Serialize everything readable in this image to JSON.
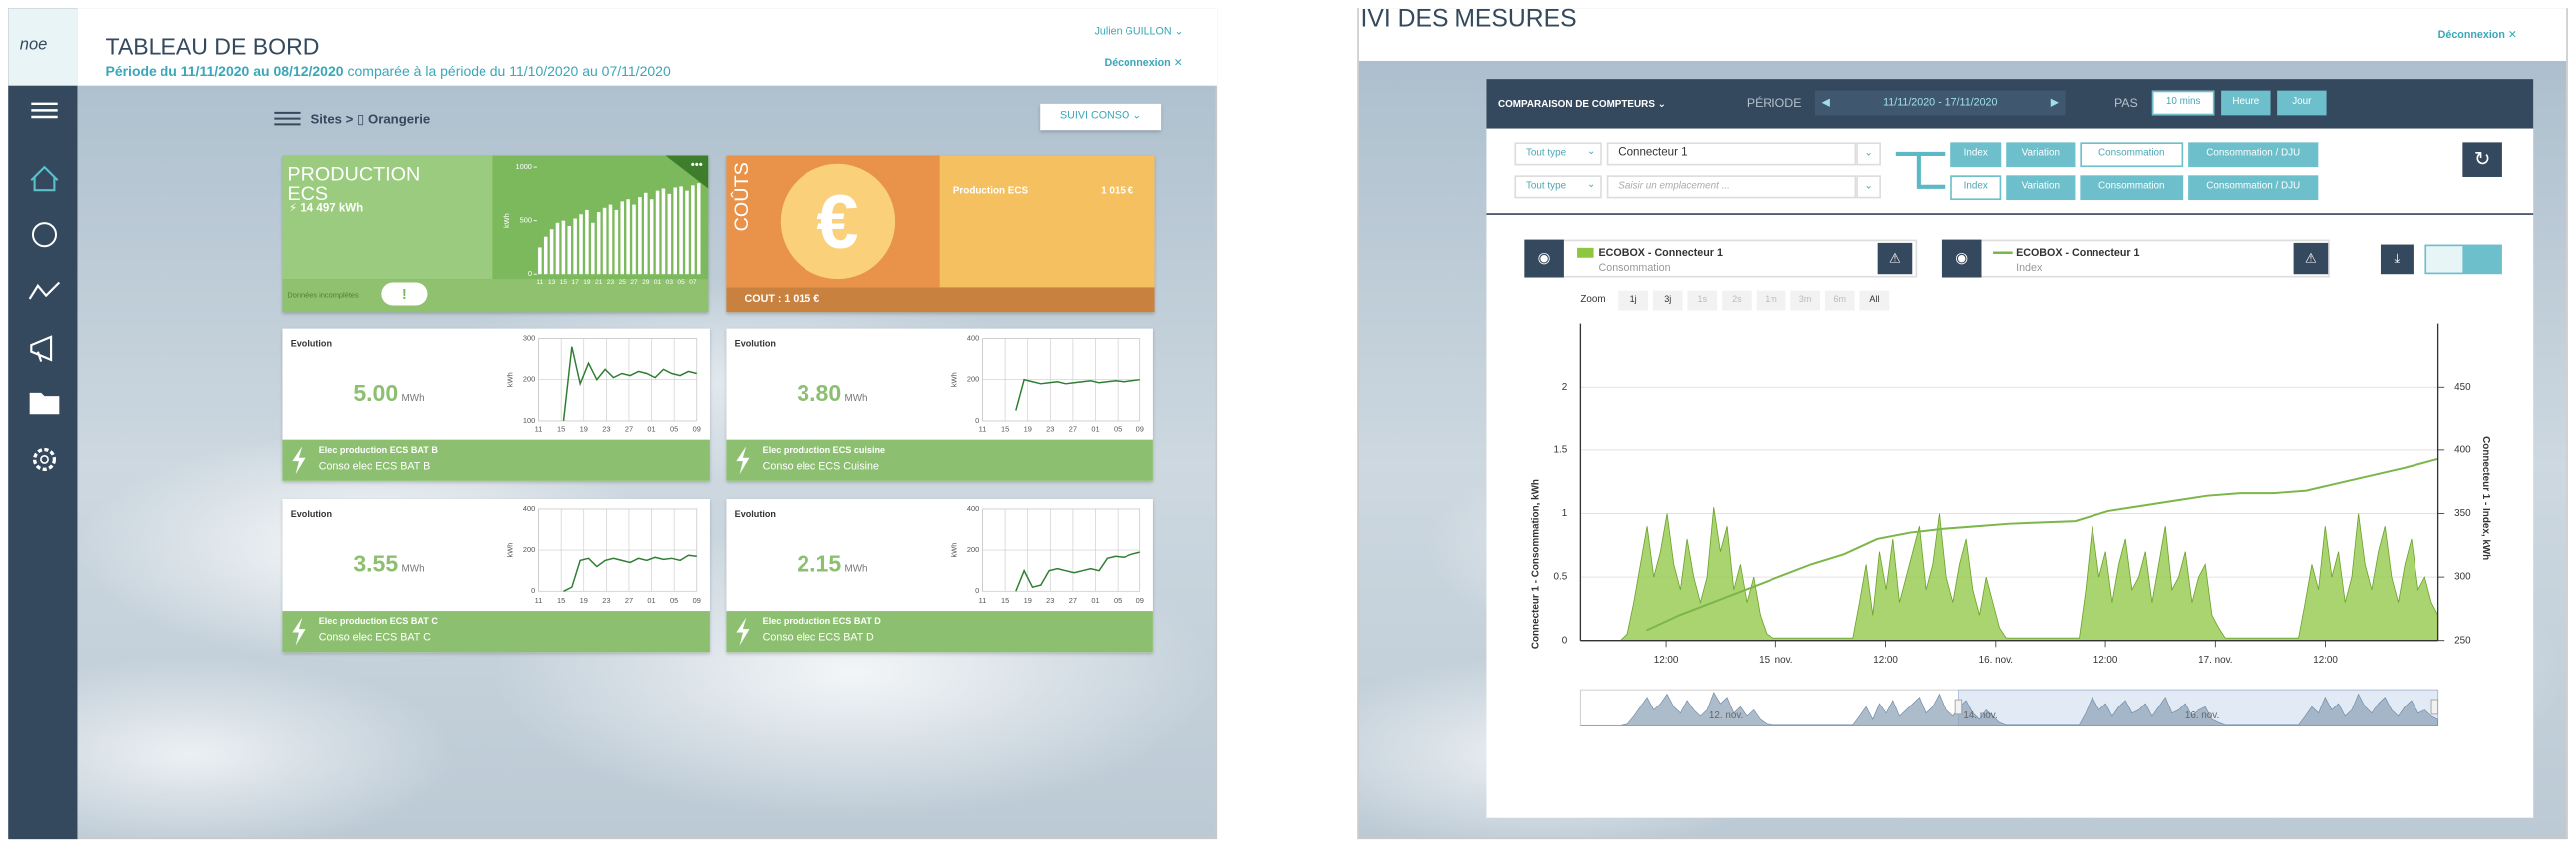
{
  "left": {
    "logo": "noe",
    "header": {
      "title": "TABLEAU DE BORD",
      "period": "Période du 11/11/2020 au 08/12/2020",
      "comparison": "comparée à la période du 11/10/2020 au 07/11/2020",
      "user": "Julien GUILLON",
      "logout": "Déconnexion"
    },
    "breadcrumb": {
      "sites": "Sites",
      "site": "Orangerie",
      "button": "SUIVI CONSO"
    },
    "production": {
      "title": "PRODUCTION ECS",
      "total": "14 497 kWh",
      "warning": "Données incomplètes",
      "chart": {
        "ylabel": "kWh",
        "ylim": [
          0,
          1000
        ],
        "yticks": [
          0,
          500,
          1000
        ],
        "categories": [
          "11",
          null,
          "13",
          null,
          "15",
          null,
          "17",
          null,
          "19",
          null,
          "21",
          null,
          "23",
          null,
          "25",
          null,
          "27",
          null,
          "29",
          null,
          "01",
          null,
          "03",
          null,
          "05",
          null,
          "07",
          null
        ],
        "values": [
          250,
          350,
          420,
          480,
          500,
          450,
          520,
          560,
          600,
          480,
          580,
          620,
          650,
          600,
          680,
          700,
          650,
          720,
          760,
          700,
          780,
          800,
          750,
          810,
          820,
          780,
          830,
          850
        ],
        "color": "#ffffff"
      }
    },
    "costs": {
      "title": "COÛTS",
      "item": "Production ECS",
      "amount": "1 015 €",
      "footer": "COUT : 1 015 €"
    },
    "evolutions": [
      {
        "label": "Evolution",
        "value": "5.00",
        "unit": "MWh",
        "title": "Elec production ECS BAT B",
        "subtitle": "Conso elec ECS BAT B",
        "chart": {
          "ylabel": "kWh",
          "ylim": [
            100,
            300
          ],
          "yticks": [
            100,
            200,
            300
          ],
          "xtick_labels": [
            "11",
            "15",
            "19",
            "23",
            "27",
            "01",
            "05",
            "09"
          ],
          "color": "#2e7d32",
          "values": [
            null,
            null,
            null,
            100,
            280,
            190,
            240,
            200,
            225,
            205,
            215,
            210,
            220,
            215,
            205,
            225,
            215,
            210,
            220,
            215
          ]
        }
      },
      {
        "label": "Evolution",
        "value": "3.80",
        "unit": "MWh",
        "title": "Elec production ECS cuisine",
        "subtitle": "Conso elec ECS Cuisine",
        "chart": {
          "ylabel": "kWh",
          "ylim": [
            0,
            400
          ],
          "yticks": [
            0,
            200,
            400
          ],
          "xtick_labels": [
            "11",
            "15",
            "19",
            "23",
            "27",
            "01",
            "05",
            "09"
          ],
          "color": "#2e7d32",
          "values": [
            null,
            null,
            null,
            null,
            50,
            200,
            190,
            180,
            185,
            190,
            180,
            185,
            190,
            195,
            185,
            190,
            195,
            190,
            195,
            200
          ]
        }
      },
      {
        "label": "Evolution",
        "value": "3.55",
        "unit": "MWh",
        "title": "Elec production ECS BAT C",
        "subtitle": "Conso elec ECS BAT C",
        "chart": {
          "ylabel": "kWh",
          "ylim": [
            0,
            400
          ],
          "yticks": [
            0,
            200,
            400
          ],
          "xtick_labels": [
            "11",
            "15",
            "19",
            "23",
            "27",
            "01",
            "05",
            "09"
          ],
          "color": "#2e7d32",
          "values": [
            null,
            null,
            null,
            0,
            20,
            150,
            160,
            120,
            150,
            160,
            150,
            140,
            160,
            150,
            165,
            155,
            160,
            150,
            175,
            170
          ]
        }
      },
      {
        "label": "Evolution",
        "value": "2.15",
        "unit": "MWh",
        "title": "Elec production ECS BAT D",
        "subtitle": "Conso elec ECS BAT D",
        "chart": {
          "ylabel": "kWh",
          "ylim": [
            0,
            400
          ],
          "yticks": [
            0,
            200,
            400
          ],
          "xtick_labels": [
            "11",
            "15",
            "19",
            "23",
            "27",
            "01",
            "05",
            "09"
          ],
          "color": "#2e7d32",
          "values": [
            null,
            null,
            null,
            null,
            0,
            100,
            20,
            30,
            100,
            110,
            100,
            90,
            100,
            110,
            100,
            160,
            170,
            165,
            180,
            190
          ]
        }
      }
    ]
  },
  "right": {
    "title": "IVI DES MESURES",
    "logout": "Déconnexion",
    "toolbar": {
      "mode": "COMPARAISON DE COMPTEURS",
      "period_label": "PÉRIODE",
      "period": "11/11/2020 - 17/11/2020",
      "step_label": "PAS",
      "steps": [
        "10 mins",
        "Heure",
        "Jour"
      ],
      "selected_step": 0
    },
    "filters": [
      {
        "type": "Tout type",
        "value": "Connecteur 1",
        "modes": [
          "Index",
          "Variation",
          "Consommation",
          "Consommation / DJU"
        ],
        "selected": 2
      },
      {
        "type": "Tout type",
        "placeholder": "Saisir un emplacement ...",
        "modes": [
          "Index",
          "Variation",
          "Consommation",
          "Consommation / DJU"
        ],
        "selected": 0
      }
    ],
    "legend": [
      {
        "name": "ECOBOX - Connecteur 1",
        "kind": "Consommation"
      },
      {
        "name": "ECOBOX - Connecteur 1",
        "kind": "Index"
      }
    ],
    "zoom": {
      "label": "Zoom",
      "options": [
        "1j",
        "3j",
        "1s",
        "2s",
        "1m",
        "3m",
        "6m",
        "All"
      ],
      "disabled": [
        2,
        3,
        4,
        5,
        6
      ]
    },
    "chart": {
      "type": "area",
      "ylabel": "Connecteur 1 - Consommation, kWh",
      "y2label": "Connecteur 1 - Index, kWh",
      "ylim": [
        0,
        2.5
      ],
      "yticks": [
        0,
        0.5,
        1,
        1.5,
        2
      ],
      "y2lim": [
        250,
        500
      ],
      "y2ticks": [
        250,
        300,
        350,
        400,
        450
      ],
      "xtick_labels": [
        "12:00",
        "15. nov.",
        "12:00",
        "16. nov.",
        "12:00",
        "17. nov.",
        "12:00"
      ],
      "series": [
        {
          "color": "#8dc63f",
          "values": [
            0,
            0,
            0,
            0,
            0,
            0,
            0,
            0.05,
            0.3,
            0.6,
            0.9,
            0.5,
            0.7,
            1.0,
            0.6,
            0.4,
            0.8,
            0.5,
            0.3,
            0.5,
            1.05,
            0.7,
            0.9,
            0.4,
            0.6,
            0.3,
            0.5,
            0.2,
            0.05,
            0.02,
            0.02,
            0.02,
            0.02,
            0.02,
            0.02,
            0.02,
            0.02,
            0.02,
            0.02,
            0.02,
            0.02,
            0.02,
            0.3,
            0.6,
            0.2,
            0.7,
            0.4,
            0.8,
            0.3,
            0.5,
            0.7,
            0.9,
            0.4,
            0.6,
            1.0,
            0.5,
            0.3,
            0.6,
            0.8,
            0.4,
            0.2,
            0.5,
            0.3,
            0.1,
            0.02,
            0.02,
            0.02,
            0.02,
            0.02,
            0.02,
            0.02,
            0.02,
            0.02,
            0.02,
            0.02,
            0.02,
            0.4,
            0.9,
            0.5,
            0.7,
            0.3,
            0.6,
            0.8,
            0.4,
            0.5,
            0.7,
            0.3,
            0.6,
            0.9,
            0.4,
            0.5,
            0.7,
            0.3,
            0.5,
            0.6,
            0.2,
            0.1,
            0.02,
            0.02,
            0.02,
            0.02,
            0.02,
            0.02,
            0.02,
            0.02,
            0.02,
            0.02,
            0.02,
            0.02,
            0.3,
            0.6,
            0.4,
            0.9,
            0.5,
            0.7,
            0.3,
            0.5,
            1.0,
            0.6,
            0.4,
            0.7,
            0.9,
            0.5,
            0.3,
            0.6,
            0.8,
            0.4,
            0.5,
            0.3,
            0.2
          ]
        },
        {
          "color": "#7ab648",
          "axis": "y2",
          "values": [
            null,
            null,
            258,
            270,
            280,
            290,
            300,
            310,
            318,
            330,
            335,
            338,
            340,
            342,
            343,
            344,
            352,
            356,
            360,
            364,
            366,
            366,
            368,
            374,
            380,
            386,
            393
          ]
        }
      ]
    },
    "navigator": {
      "labels": [
        "12. nov.",
        "14. nov.",
        "16. nov."
      ]
    }
  }
}
